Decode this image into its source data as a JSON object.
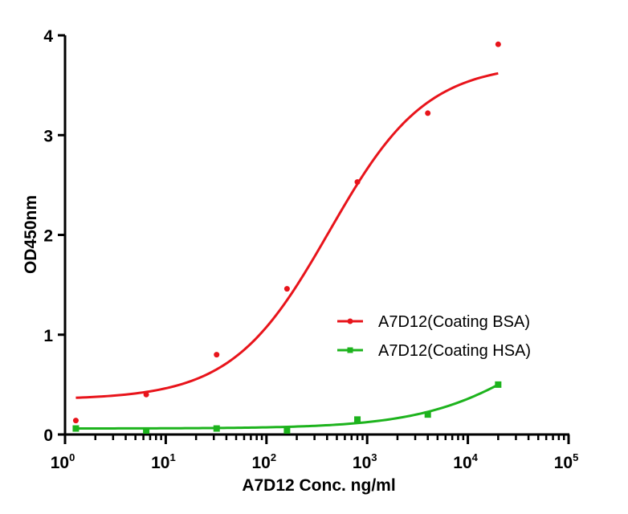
{
  "chart_data": {
    "type": "scatter",
    "title": "",
    "xlabel": "A7D12 Conc. ng/ml",
    "ylabel": "OD450nm",
    "xscale": "log10",
    "xlim": [
      1,
      100000
    ],
    "ylim": [
      0,
      4
    ],
    "grid": false,
    "x_ticks": [
      {
        "base": "10",
        "exp": "0",
        "value": 1
      },
      {
        "base": "10",
        "exp": "1",
        "value": 10
      },
      {
        "base": "10",
        "exp": "2",
        "value": 100
      },
      {
        "base": "10",
        "exp": "3",
        "value": 1000
      },
      {
        "base": "10",
        "exp": "4",
        "value": 10000
      },
      {
        "base": "10",
        "exp": "5",
        "value": 100000
      }
    ],
    "y_ticks": [
      "0",
      "1",
      "2",
      "3",
      "4"
    ],
    "legend_position": "center-right",
    "series": [
      {
        "name": "A7D12(Coating BSA)",
        "color": "#e8141b",
        "marker": "circle",
        "x": [
          1.28,
          6.4,
          32,
          160,
          800,
          4000,
          20000
        ],
        "y": [
          0.14,
          0.4,
          0.8,
          1.46,
          2.53,
          3.22,
          3.91
        ],
        "fit": {
          "model": "4PL",
          "bottom": 0.35,
          "top": 3.72,
          "ec50": 420,
          "hill": 0.9
        }
      },
      {
        "name": "A7D12(Coating HSA)",
        "color": "#1db31d",
        "marker": "square",
        "x": [
          1.28,
          6.4,
          32,
          160,
          800,
          4000,
          20000
        ],
        "y": [
          0.06,
          0.04,
          0.06,
          0.04,
          0.15,
          0.2,
          0.5
        ],
        "fit": {
          "model": "4PL",
          "bottom": 0.06,
          "top": 1.5,
          "ec50": 60000,
          "hill": 0.75
        }
      }
    ]
  }
}
